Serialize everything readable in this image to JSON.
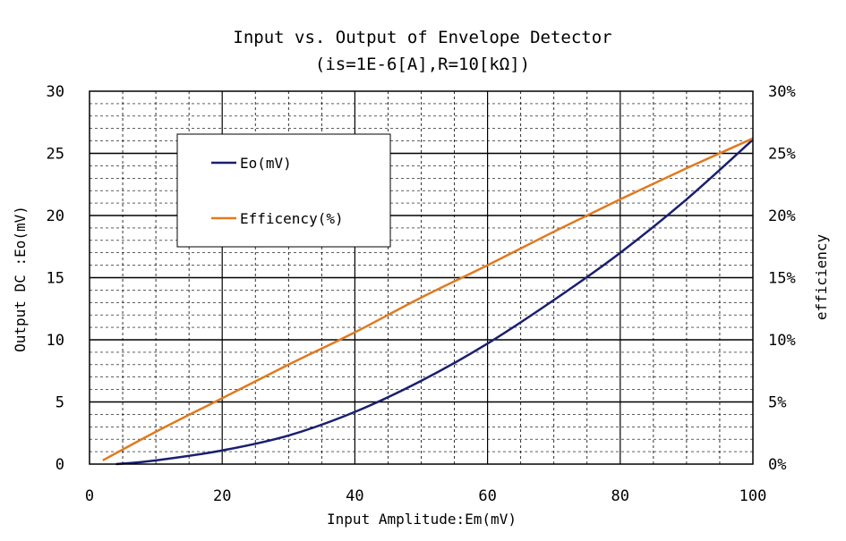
{
  "chart_data": {
    "type": "line",
    "title": "Input vs. Output of Envelope Detector",
    "subtitle": "(is=1E-6[A],R=10[kΩ])",
    "xlabel": "Input Amplitude:Em(mV)",
    "ylabel": "Output DC :Eo(mV)",
    "y2label": "efficiency",
    "xlim": [
      0,
      100
    ],
    "ylim": [
      0,
      30
    ],
    "y2lim": [
      0,
      30
    ],
    "x_ticks": [
      "0",
      "20",
      "40",
      "60",
      "80",
      "100"
    ],
    "y_ticks": [
      "0",
      "5",
      "10",
      "15",
      "20",
      "25",
      "30"
    ],
    "y2_ticks": [
      "0%",
      "5%",
      "10%",
      "15%",
      "20%",
      "25%",
      "30%"
    ],
    "grid": true,
    "legend_position": "top-left",
    "series": [
      {
        "name": "Eo(mV)",
        "axis": "left",
        "color": "#1a1f6e",
        "x": [
          4,
          10,
          20,
          30,
          40,
          50,
          60,
          70,
          80,
          90,
          100
        ],
        "y": [
          0.0,
          0.3,
          1.1,
          2.3,
          4.2,
          6.7,
          9.7,
          13.2,
          17.0,
          21.3,
          26.1
        ]
      },
      {
        "name": "Efficency(%)",
        "axis": "right",
        "color": "#e07a1e",
        "x": [
          2,
          10,
          20,
          30,
          40,
          50,
          60,
          70,
          80,
          90,
          100
        ],
        "y": [
          0.3,
          2.6,
          5.3,
          8.0,
          10.6,
          13.4,
          16.0,
          18.7,
          21.3,
          23.8,
          26.2
        ]
      }
    ]
  }
}
